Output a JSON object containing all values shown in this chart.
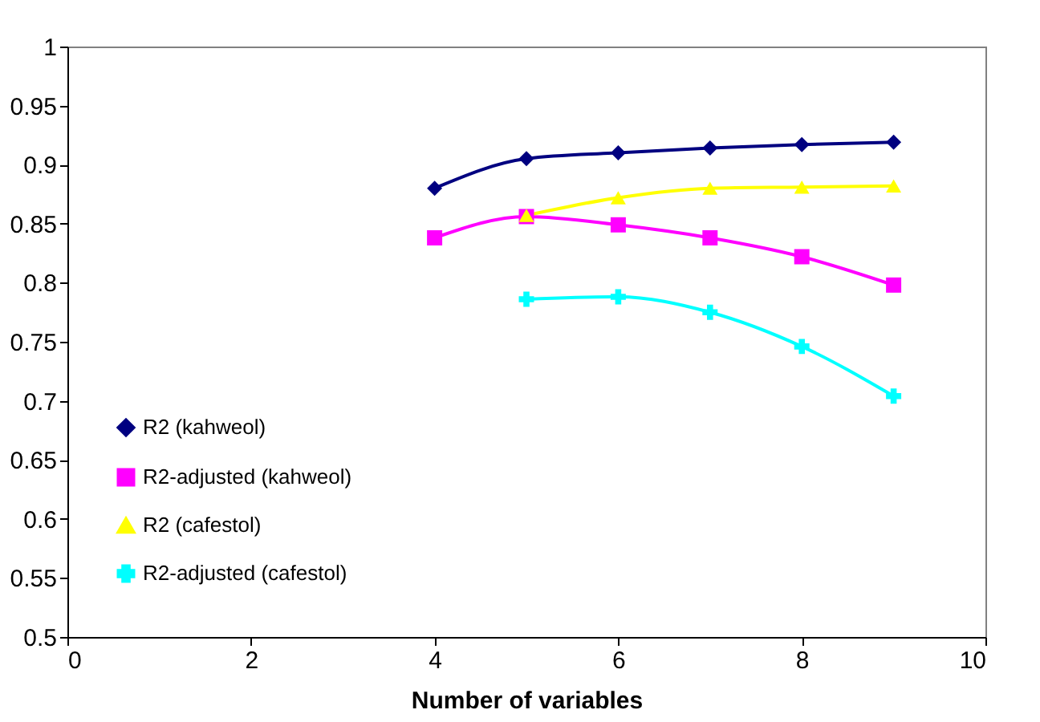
{
  "chart_data": {
    "type": "line",
    "xlabel": "Number of variables",
    "xlim": [
      0,
      10
    ],
    "xticks": [
      0,
      2,
      4,
      6,
      8,
      10
    ],
    "ylim": [
      0.5,
      1
    ],
    "yticks": [
      0.5,
      0.55,
      0.6,
      0.65,
      0.7,
      0.75,
      0.8,
      0.85,
      0.9,
      0.95,
      1
    ],
    "grid": false,
    "legend": "bottom left",
    "line_style": "solid",
    "series": [
      {
        "name": "R2 (kahweol)",
        "color": "#000080",
        "marker": "diamond",
        "x": [
          4,
          5,
          6,
          7,
          8,
          9
        ],
        "values": [
          0.88,
          0.905,
          0.91,
          0.914,
          0.917,
          0.919
        ]
      },
      {
        "name": "R2-adjusted (kahweol)",
        "color": "#ff00ff",
        "marker": "square",
        "x": [
          4,
          5,
          6,
          7,
          8,
          9
        ],
        "values": [
          0.838,
          0.856,
          0.849,
          0.838,
          0.822,
          0.798
        ]
      },
      {
        "name": "R2 (cafestol)",
        "color": "#ffff00",
        "marker": "triangle",
        "x": [
          5,
          6,
          7,
          8,
          9
        ],
        "values": [
          0.857,
          0.872,
          0.88,
          0.881,
          0.882
        ]
      },
      {
        "name": "R2-adjusted (cafestol)",
        "color": "#00ffff",
        "marker": "cross",
        "x": [
          5,
          6,
          7,
          8,
          9
        ],
        "values": [
          0.786,
          0.788,
          0.775,
          0.746,
          0.704
        ]
      }
    ]
  }
}
